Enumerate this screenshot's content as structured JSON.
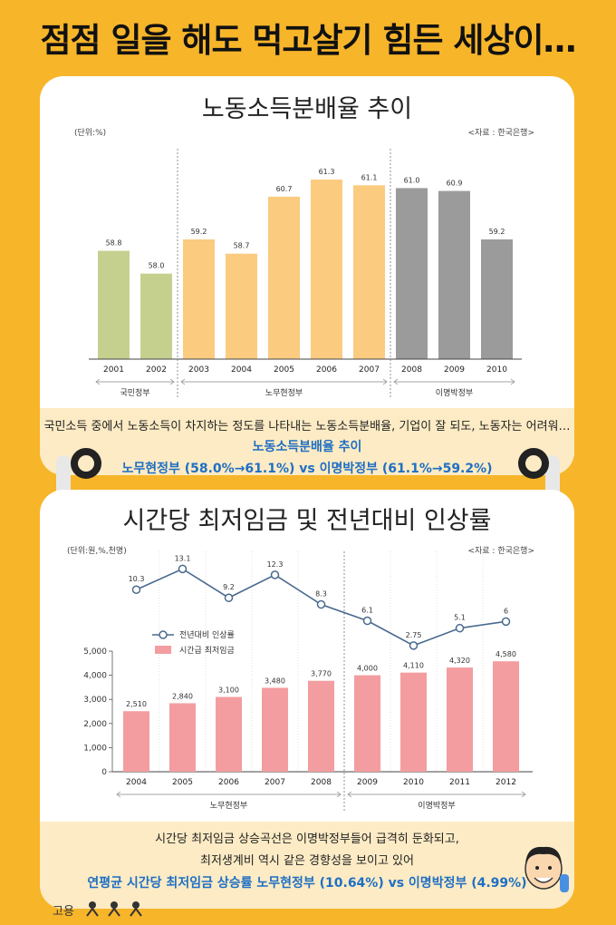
{
  "headline": "점점 일을 해도 먹고살기 힘든 세상이…",
  "chart1": {
    "title": "노동소득분배율 추이",
    "unit": "(단위:%)",
    "source": "<자료 : 한국은행>",
    "groups": [
      "국민정부",
      "노무현정부",
      "이명박정부"
    ],
    "caption": "국민소득 중에서 노동소득이 차지하는 정도를 나타내는 노동소득분배율, 기업이 잘 되도, 노동자는 어려워…",
    "highlight_title": "노동소득분배율 추이",
    "highlight_text": "노무현정부 (58.0%→61.1%) vs 이명박정부 (61.1%→59.2%)",
    "colors": {
      "국민정부": "#c5d08f",
      "노무현정부": "#fbcb80",
      "이명박정부": "#9b9b9b"
    }
  },
  "chart2": {
    "title": "시간당 최저임금 및 전년대비 인상률",
    "unit": "(단위:원,%,천명)",
    "source": "<자료 : 한국은행>",
    "legend_line": "전년대비 인상률",
    "legend_bar": "시간급 최저임금",
    "groups": [
      "노무현정부",
      "이명박정부"
    ],
    "caption_line1": "시간당 최저임금 상승곡선은 이명박정부들어 급격히 둔화되고,",
    "caption_line2": "최저생계비 역시 같은 경향성을 보이고 있어",
    "highlight_text": "연평균 시간당 최저임금 상승률 노무현정부 (10.64%) vs 이명박정부 (4.99%)",
    "colors": {
      "bar": "#f39da0",
      "line": "#4a6a8e"
    }
  },
  "footer_logo": "고용",
  "chart_data": [
    {
      "type": "bar",
      "title": "노동소득분배율 추이",
      "categories": [
        "2001",
        "2002",
        "2003",
        "2004",
        "2005",
        "2006",
        "2007",
        "2008",
        "2009",
        "2010"
      ],
      "values": [
        58.8,
        58.0,
        59.2,
        58.7,
        60.7,
        61.3,
        61.1,
        61.0,
        60.9,
        59.2
      ],
      "value_labels": [
        "58.8",
        "58.0",
        "59.2",
        "58.7",
        "60.7",
        "61.3",
        "61.1",
        "61.0",
        "60.9",
        "59.2"
      ],
      "group_of": [
        "국민정부",
        "국민정부",
        "노무현정부",
        "노무현정부",
        "노무현정부",
        "노무현정부",
        "노무현정부",
        "이명박정부",
        "이명박정부",
        "이명박정부"
      ],
      "ylim": [
        55,
        62
      ],
      "grid": false
    },
    {
      "type": "bar",
      "title": "시간당 최저임금 및 전년대비 인상률",
      "categories": [
        "2004",
        "2005",
        "2006",
        "2007",
        "2008",
        "2009",
        "2010",
        "2011",
        "2012"
      ],
      "series": [
        {
          "name": "시간급 최저임금",
          "type": "bar",
          "values": [
            2510,
            2840,
            3100,
            3480,
            3770,
            4000,
            4110,
            4320,
            4580
          ],
          "labels": [
            "2,510",
            "2,840",
            "3,100",
            "3,480",
            "3,770",
            "4,000",
            "4,110",
            "4,320",
            "4,580"
          ]
        },
        {
          "name": "전년대비 인상률",
          "type": "line",
          "values": [
            10.3,
            13.1,
            9.2,
            12.3,
            8.3,
            6.1,
            2.75,
            5.1,
            6
          ],
          "labels": [
            "10.3",
            "13.1",
            "9.2",
            "12.3",
            "8.3",
            "6.1",
            "2.75",
            "5.1",
            "6"
          ]
        }
      ],
      "group_of": [
        "노무현정부",
        "노무현정부",
        "노무현정부",
        "노무현정부",
        "노무현정부",
        "이명박정부",
        "이명박정부",
        "이명박정부",
        "이명박정부"
      ],
      "ylim": [
        0,
        5000
      ],
      "yticks": [
        "0",
        "1,000",
        "2,000",
        "3,000",
        "4,000",
        "5,000"
      ],
      "grid": false,
      "legend": "center-left"
    }
  ]
}
